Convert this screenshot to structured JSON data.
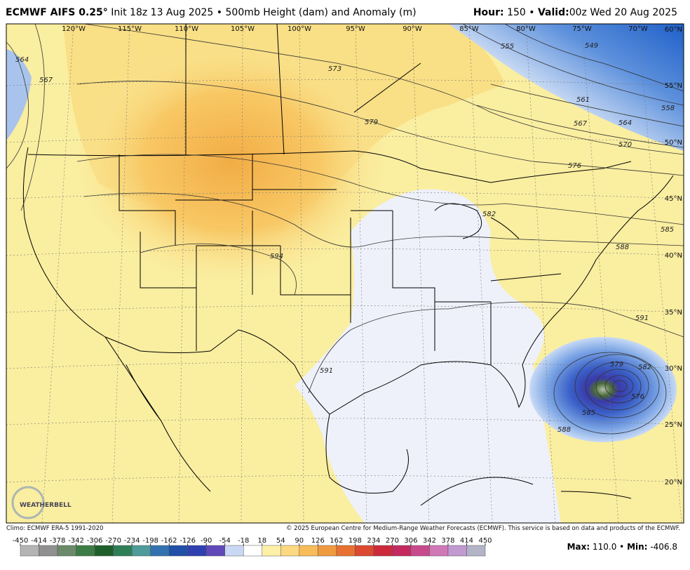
{
  "header": {
    "model": "ECMWF AIFS 0.25°",
    "description": "Init 18z 13 Aug 2025 • 500mb Height (dam) and Anomaly (m)",
    "hour_label": "Hour:",
    "hour": "150",
    "separator": "•",
    "valid_label": "Valid:",
    "valid": "00z Wed 20 Aug 2025"
  },
  "map": {
    "longitudes": [
      "120°W",
      "115°W",
      "110°W",
      "105°W",
      "100°W",
      "95°W",
      "90°W",
      "85°W",
      "80°W",
      "75°W",
      "70°W"
    ],
    "latitudes": [
      "60°N",
      "55°N",
      "50°N",
      "45°N",
      "40°N",
      "35°N",
      "30°N",
      "25°N",
      "20°N"
    ],
    "contour_labels": [
      564,
      567,
      573,
      579,
      555,
      549,
      561,
      564,
      558,
      567,
      570,
      576,
      582,
      585,
      588,
      594,
      591,
      591,
      579,
      582,
      576,
      585,
      588
    ],
    "logo": "WEATHERBELL"
  },
  "footer": {
    "climo": "Climo: ECMWF ERA-5 1991-2020",
    "copyright": "© 2025 European Centre for Medium-Range Weather Forecasts (ECMWF). This service is based on data and products of the ECMWF.",
    "max_label": "Max:",
    "max": "110.0",
    "separator": "•",
    "min_label": "Min:",
    "min": "-406.8"
  },
  "colorbar": {
    "ticks": [
      -450,
      -414,
      -378,
      -342,
      -306,
      -270,
      -234,
      -198,
      -162,
      -126,
      -90,
      -54,
      -18,
      18,
      54,
      90,
      126,
      162,
      198,
      234,
      270,
      306,
      342,
      378,
      414,
      450
    ],
    "colors": [
      "#b4b4b4",
      "#909090",
      "#6a8a6a",
      "#3d7d45",
      "#1f5f2c",
      "#2e7f58",
      "#4f9a9a",
      "#3272b0",
      "#2050a8",
      "#3040b0",
      "#6048b8",
      "#c8d8f4",
      "#ffffff",
      "#fff0a8",
      "#fcd880",
      "#f8bc58",
      "#f09a40",
      "#e87030",
      "#dc4830",
      "#cc2a3a",
      "#c42a60",
      "#c84a8c",
      "#d078b8",
      "#c09ad0",
      "#b4b4c8"
    ]
  }
}
